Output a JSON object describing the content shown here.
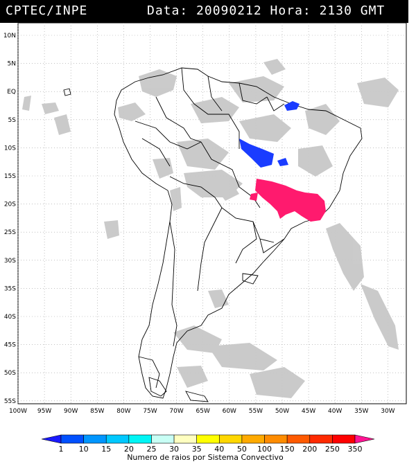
{
  "header": {
    "source": "CPTEC/INPE",
    "datetime": "Data: 20090212 Hora: 2130 GMT"
  },
  "map": {
    "lat_labels": [
      "10N",
      "5N",
      "EQ",
      "5S",
      "10S",
      "15S",
      "20S",
      "25S",
      "30S",
      "35S",
      "40S",
      "45S",
      "50S",
      "55S"
    ],
    "lon_labels": [
      "100W",
      "95W",
      "90W",
      "85W",
      "80W",
      "75W",
      "70W",
      "65W",
      "60W",
      "55W",
      "50W",
      "45W",
      "40W",
      "35W",
      "30W"
    ],
    "cloud_color": "#c8c8c8",
    "border_color": "#000000"
  },
  "legend": {
    "title": "Numero de raios por Sistema Convectivo",
    "labels": [
      "1",
      "10",
      "15",
      "20",
      "25",
      "30",
      "35",
      "40",
      "50",
      "100",
      "150",
      "200",
      "250",
      "350"
    ],
    "colors": [
      "#1a1aff",
      "#0050ff",
      "#0096ff",
      "#00c8ff",
      "#00f5f5",
      "#c8fff5",
      "#ffffc0",
      "#ffff00",
      "#ffd700",
      "#ffaa00",
      "#ff8c00",
      "#ff5a00",
      "#ff2a00",
      "#ff0000",
      "#ff1493"
    ]
  },
  "lightning": {
    "blue_color": "#1a3cff",
    "pink_color": "#ff1a6e"
  }
}
